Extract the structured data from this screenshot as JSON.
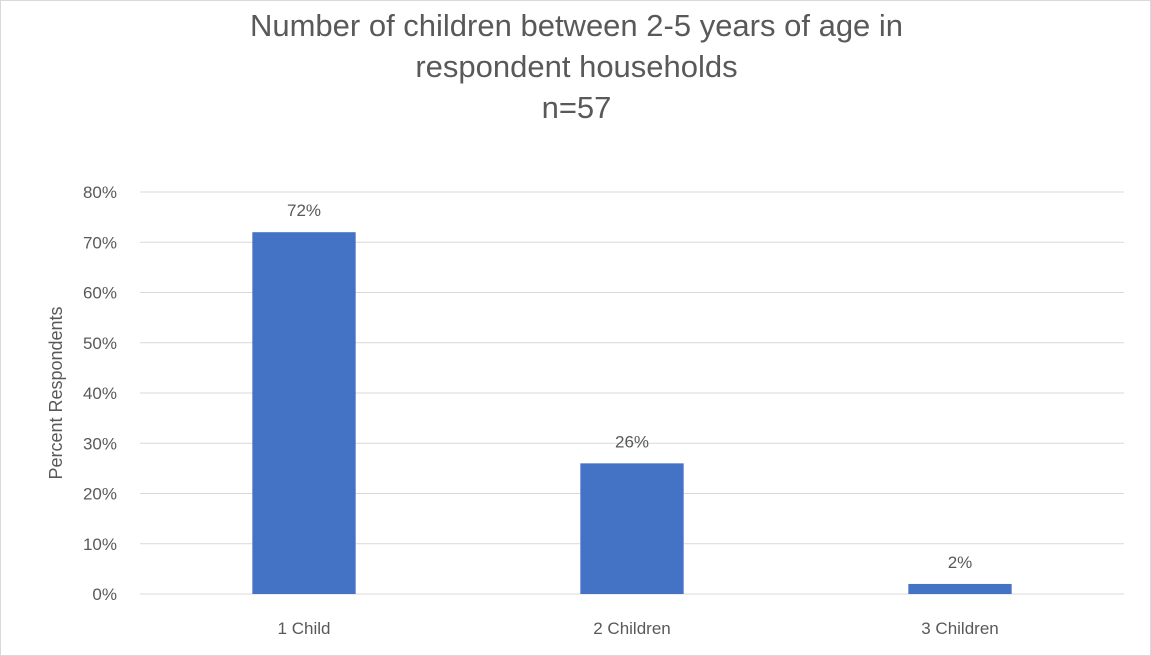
{
  "chart_data": {
    "type": "bar",
    "title_lines": [
      "Number of children between 2-5 years of age in",
      "respondent households",
      "n=57"
    ],
    "xlabel": "",
    "ylabel": "Percent Respondents",
    "categories": [
      "1 Child",
      "2 Children",
      "3 Children"
    ],
    "values": [
      72,
      26,
      2
    ],
    "data_labels": [
      "72%",
      "26%",
      "2%"
    ],
    "ylim": [
      0,
      80
    ],
    "ytick_step": 10,
    "ytick_suffix": "%",
    "grid": true,
    "legend": "none",
    "colors": {
      "bar": "#4472c4",
      "grid": "#d9d9d9",
      "text": "#595959"
    }
  }
}
